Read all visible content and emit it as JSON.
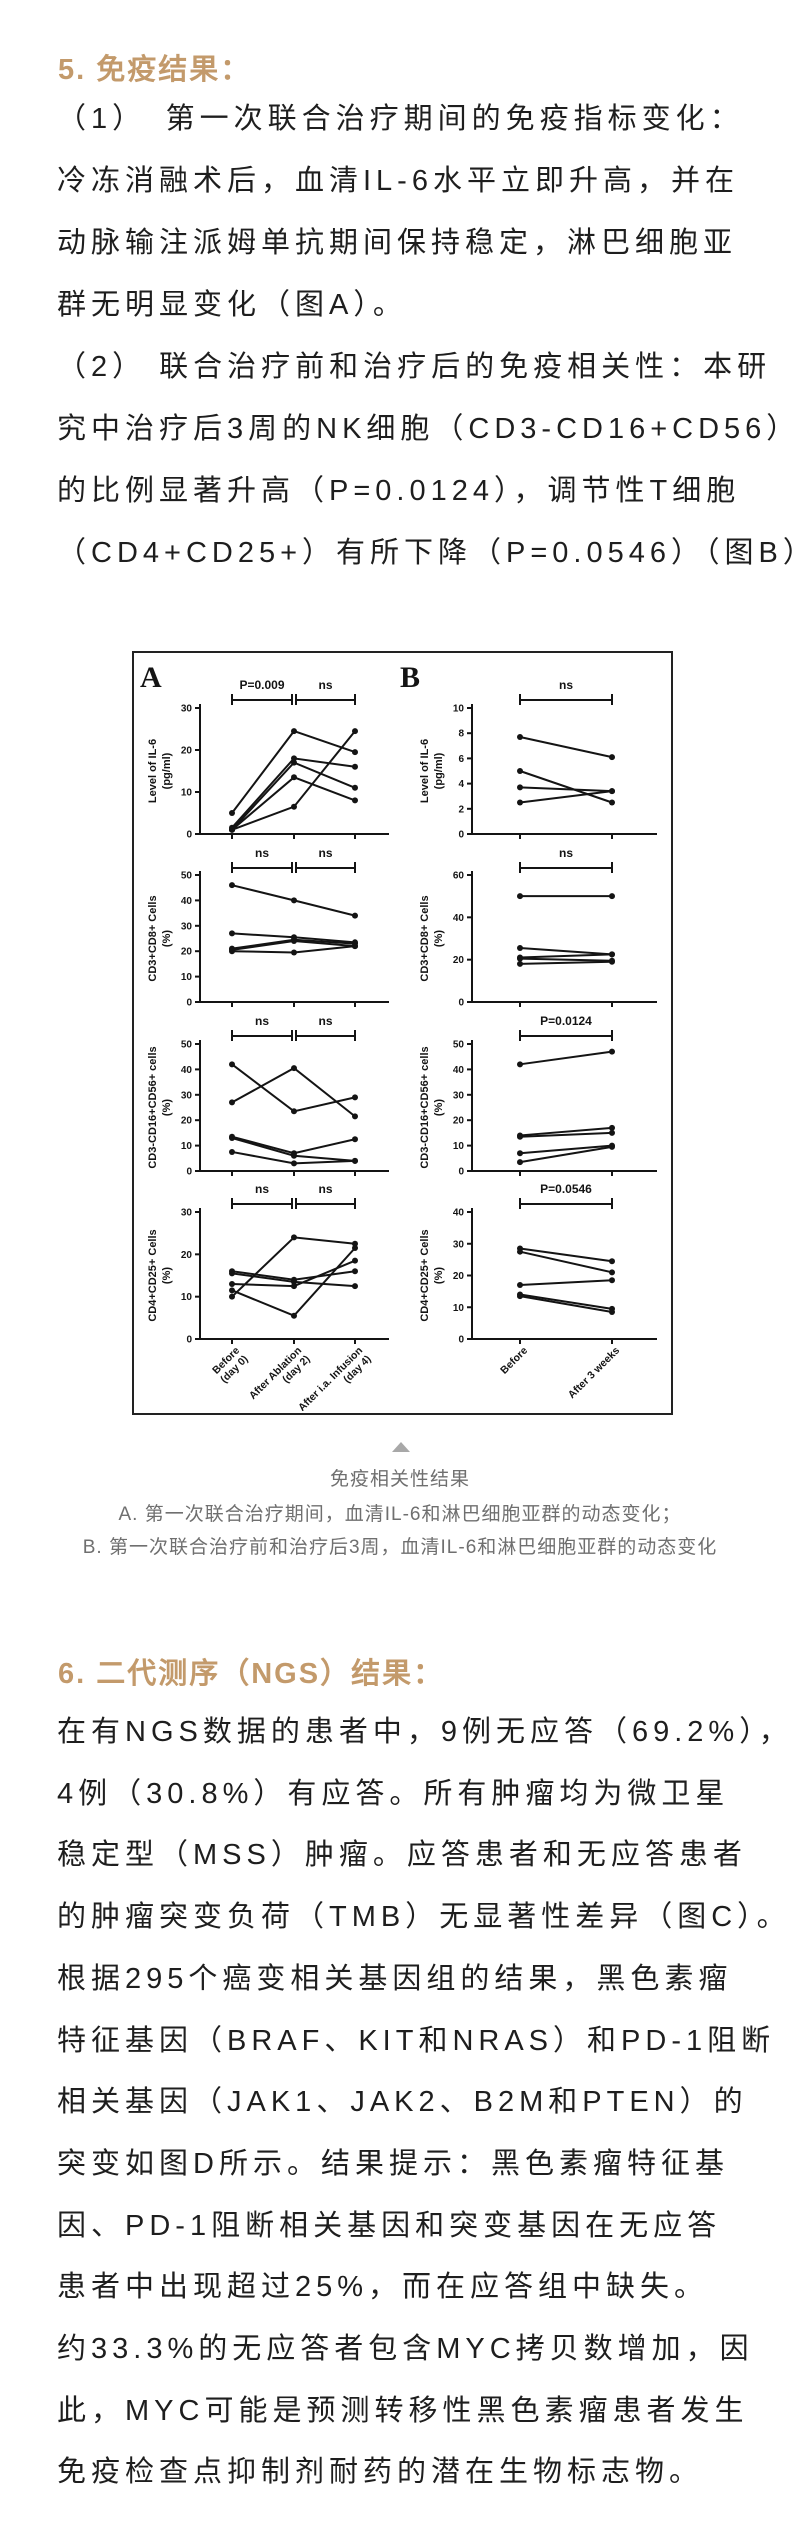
{
  "colors": {
    "heading": "#C39A6B",
    "body_text": "#1E1E1E",
    "caption_text": "#6F6F6F",
    "triangle": "#A8A8A8",
    "figure_ink": "#141414"
  },
  "section5": {
    "heading": "5. 免疫结果：",
    "lines": [
      "（1）　第一次联合治疗期间的免疫指标变化：",
      "冷冻消融术后，血清IL-6水平立即升高，并在",
      "动脉输注派姆单抗期间保持稳定，淋巴细胞亚",
      "群无明显变化（图A）。",
      "（2） 联合治疗前和治疗后的免疫相关性：本研",
      "究中治疗后3周的NK细胞（CD3-CD16+CD56）",
      "的比例显著升高（P=0.0124），调节性T细胞",
      "（CD4+CD25+）有所下降（P=0.0546）（图B）"
    ]
  },
  "figure": {
    "panel_a_label": "A",
    "panel_b_label": "B",
    "caption_title": "免疫相关性结果",
    "caption_a": "A. 第一次联合治疗期间，血清IL-6和淋巴细胞亚群的动态变化；",
    "caption_b": "B. 第一次联合治疗前和治疗后3周，血清IL-6和淋巴细胞亚群的动态变化"
  },
  "chart_data": [
    {
      "id": "A1",
      "panel": "A",
      "row": 1,
      "type": "line",
      "ylabel": [
        "Level of IL-6",
        "(pg/ml)"
      ],
      "ymax": 30,
      "yticks": [
        0,
        10,
        20,
        30
      ],
      "categories": [
        [
          "Before",
          "(day 0)"
        ],
        [
          "After Ablation",
          "(day 2)"
        ],
        [
          "After i.a. Infusion",
          "(day 4)"
        ]
      ],
      "sig": [
        {
          "from": 0,
          "to": 1,
          "label": "P=0.009"
        },
        {
          "from": 1,
          "to": 2,
          "label": "ns"
        }
      ],
      "series": [
        [
          5,
          24.5,
          19.5
        ],
        [
          1.5,
          18,
          16
        ],
        [
          1,
          17,
          11
        ],
        [
          1,
          13.5,
          8
        ],
        [
          1,
          6.5,
          24.5
        ]
      ]
    },
    {
      "id": "B1",
      "panel": "B",
      "row": 1,
      "type": "line",
      "ylabel": [
        "Level of IL-6",
        "(pg/ml)"
      ],
      "ymax": 10,
      "yticks": [
        0,
        2,
        4,
        6,
        8,
        10
      ],
      "categories": [
        [
          "Before"
        ],
        [
          "After 3 weeks"
        ]
      ],
      "sig": [
        {
          "from": 0,
          "to": 1,
          "label": "ns"
        }
      ],
      "series": [
        [
          7.7,
          6.1
        ],
        [
          5,
          2.5
        ],
        [
          3.7,
          3.4
        ],
        [
          2.5,
          3.4
        ]
      ]
    },
    {
      "id": "A2",
      "panel": "A",
      "row": 2,
      "type": "line",
      "ylabel": [
        "CD3+CD8+ Cells",
        "(%)"
      ],
      "ymax": 50,
      "yticks": [
        0,
        10,
        20,
        30,
        40,
        50
      ],
      "categories": [
        [
          "Before",
          "(day 0)"
        ],
        [
          "After Ablation",
          "(day 2)"
        ],
        [
          "After i.a. Infusion",
          "(day 4)"
        ]
      ],
      "sig": [
        {
          "from": 0,
          "to": 1,
          "label": "ns"
        },
        {
          "from": 1,
          "to": 2,
          "label": "ns"
        }
      ],
      "series": [
        [
          46,
          40,
          34
        ],
        [
          27,
          25.5,
          23.5
        ],
        [
          21,
          24.5,
          23
        ],
        [
          20.5,
          24,
          22
        ],
        [
          20,
          19.5,
          22
        ]
      ]
    },
    {
      "id": "B2",
      "panel": "B",
      "row": 2,
      "type": "line",
      "ylabel": [
        "CD3+CD8+ Cells",
        "(%)"
      ],
      "ymax": 60,
      "yticks": [
        0,
        20,
        40,
        60
      ],
      "categories": [
        [
          "Before"
        ],
        [
          "After 3 weeks"
        ]
      ],
      "sig": [
        {
          "from": 0,
          "to": 1,
          "label": "ns"
        }
      ],
      "series": [
        [
          50,
          50
        ],
        [
          25.5,
          22.5
        ],
        [
          21,
          22.5
        ],
        [
          20.5,
          19.5
        ],
        [
          18,
          19
        ]
      ]
    },
    {
      "id": "A3",
      "panel": "A",
      "row": 3,
      "type": "line",
      "ylabel": [
        "CD3-CD16+CD56+ cells",
        "(%)"
      ],
      "ymax": 50,
      "yticks": [
        0,
        10,
        20,
        30,
        40,
        50
      ],
      "categories": [
        [
          "Before",
          "(day 0)"
        ],
        [
          "After Ablation",
          "(day 2)"
        ],
        [
          "After i.a. Infusion",
          "(day 4)"
        ]
      ],
      "sig": [
        {
          "from": 0,
          "to": 1,
          "label": "ns"
        },
        {
          "from": 1,
          "to": 2,
          "label": "ns"
        }
      ],
      "series": [
        [
          42,
          23.5,
          29
        ],
        [
          27,
          40.5,
          21.5
        ],
        [
          13.5,
          7,
          12.5
        ],
        [
          13,
          6,
          4
        ],
        [
          7.5,
          3,
          4
        ]
      ]
    },
    {
      "id": "B3",
      "panel": "B",
      "row": 3,
      "type": "line",
      "ylabel": [
        "CD3-CD16+CD56+ cells",
        "(%)"
      ],
      "ymax": 50,
      "yticks": [
        0,
        10,
        20,
        30,
        40,
        50
      ],
      "categories": [
        [
          "Before"
        ],
        [
          "After 3 weeks"
        ]
      ],
      "sig": [
        {
          "from": 0,
          "to": 1,
          "label": "P=0.0124"
        }
      ],
      "series": [
        [
          42,
          47
        ],
        [
          14,
          17
        ],
        [
          13.5,
          15
        ],
        [
          7,
          10
        ],
        [
          3.5,
          9.5
        ]
      ]
    },
    {
      "id": "A4",
      "panel": "A",
      "row": 4,
      "type": "line",
      "ylabel": [
        "CD4+CD25+ Cells",
        "(%)"
      ],
      "ymax": 30,
      "yticks": [
        0,
        10,
        20,
        30
      ],
      "categories": [
        [
          "Before",
          "(day 0)"
        ],
        [
          "After Ablation",
          "(day 2)"
        ],
        [
          "After i.a. Infusion",
          "(day 4)"
        ]
      ],
      "sig": [
        {
          "from": 0,
          "to": 1,
          "label": "ns"
        },
        {
          "from": 1,
          "to": 2,
          "label": "ns"
        }
      ],
      "series": [
        [
          10,
          24,
          22.5
        ],
        [
          16,
          14,
          16
        ],
        [
          15.5,
          13.5,
          12.5
        ],
        [
          13,
          12.5,
          18.5
        ],
        [
          11.5,
          5.5,
          21.5
        ]
      ]
    },
    {
      "id": "B4",
      "panel": "B",
      "row": 4,
      "type": "line",
      "ylabel": [
        "CD4+CD25+ Cells",
        "(%)"
      ],
      "ymax": 40,
      "yticks": [
        0,
        10,
        20,
        30,
        40
      ],
      "categories": [
        [
          "Before"
        ],
        [
          "After 3 weeks"
        ]
      ],
      "sig": [
        {
          "from": 0,
          "to": 1,
          "label": "P=0.0546"
        }
      ],
      "series": [
        [
          28.5,
          24.5
        ],
        [
          27.5,
          21
        ],
        [
          17,
          18.5
        ],
        [
          14,
          9.5
        ],
        [
          13.5,
          8.5
        ]
      ]
    }
  ],
  "section6": {
    "heading": "6. 二代测序（NGS）结果：",
    "lines": [
      "在有NGS数据的患者中，9例无应答（69.2%），",
      "4例（30.8%）有应答。所有肿瘤均为微卫星",
      "稳定型（MSS）肿瘤。应答患者和无应答患者",
      "的肿瘤突变负荷（TMB）无显著性差异（图C）。",
      "根据295个癌变相关基因组的结果，黑色素瘤",
      "特征基因（BRAF、KIT和NRAS）和PD-1阻断",
      "相关基因（JAK1、JAK2、B2M和PTEN）的",
      "突变如图D所示。结果提示：黑色素瘤特征基",
      "因、PD-1阻断相关基因和突变基因在无应答",
      "患者中出现超过25%，而在应答组中缺失。",
      "约33.3%的无应答者包含MYC拷贝数增加，因",
      "此，MYC可能是预测转移性黑色素瘤患者发生",
      "免疫检查点抑制剂耐药的潜在生物标志物。"
    ]
  }
}
